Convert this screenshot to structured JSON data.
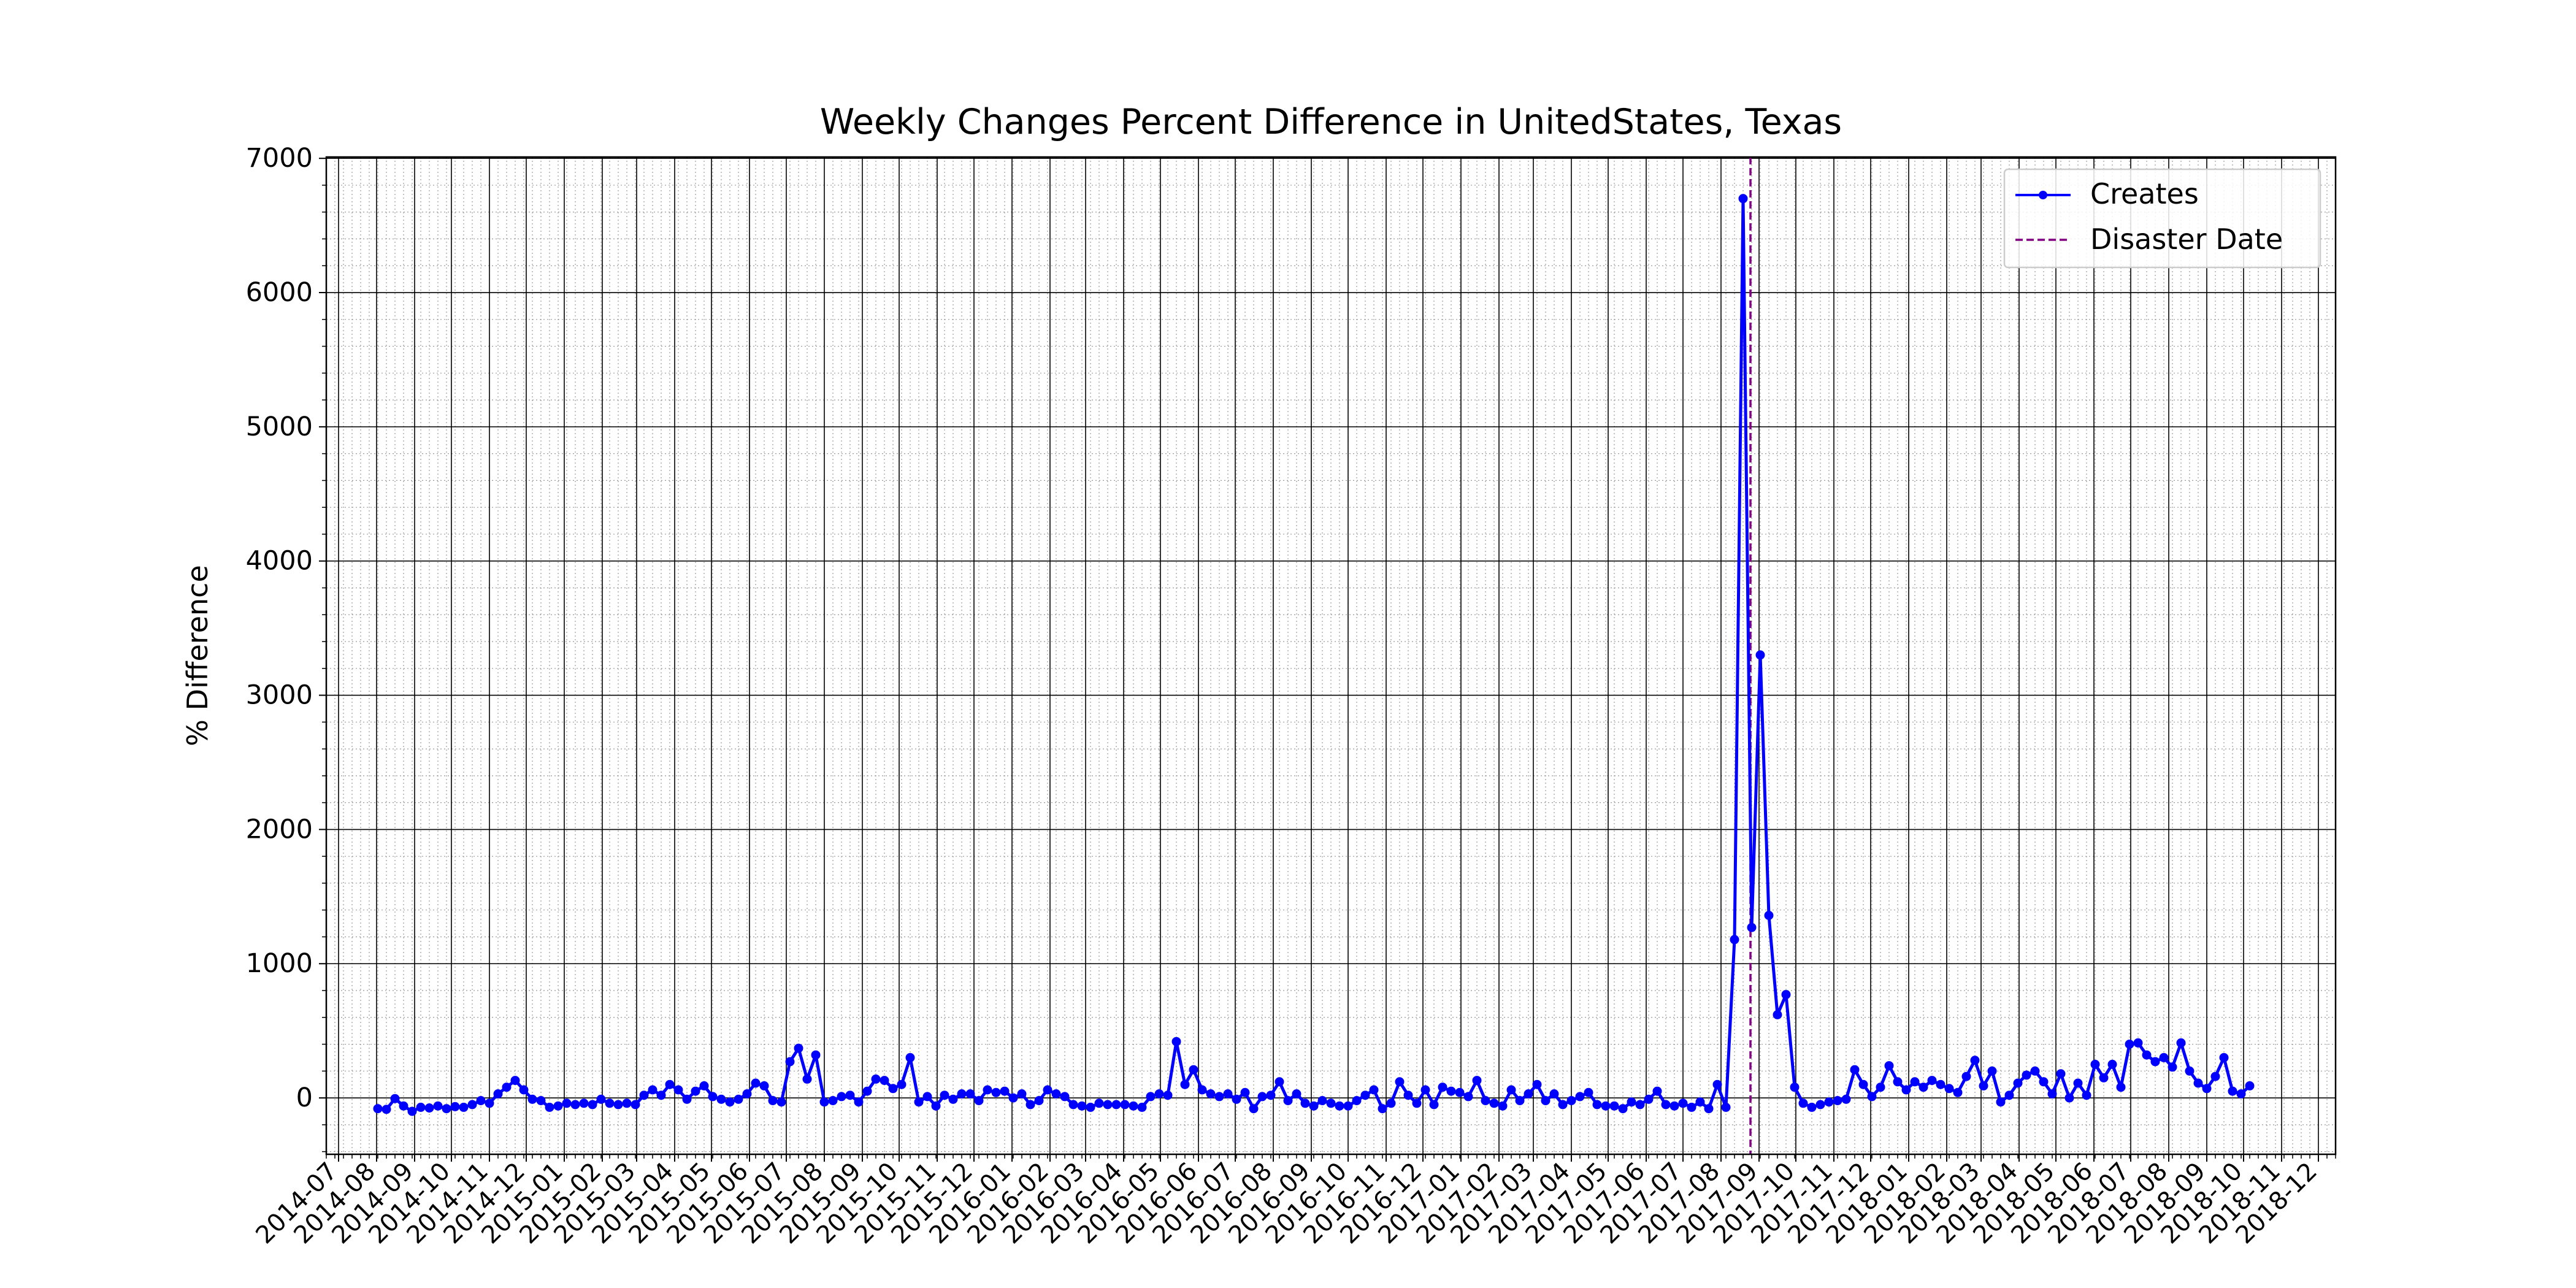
{
  "chart_data": {
    "type": "line",
    "title": "Weekly Changes Percent Difference in UnitedStates, Texas",
    "xlabel": "",
    "ylabel": "% Difference",
    "x_axis": "date",
    "xlim": [
      "2014-06-21",
      "2018-12-15"
    ],
    "ylim": [
      -420,
      7010
    ],
    "x_ticks": [
      "2014-07-01",
      "2014-08-01",
      "2014-09-01",
      "2014-10-01",
      "2014-11-01",
      "2014-12-01",
      "2015-01-01",
      "2015-02-01",
      "2015-03-01",
      "2015-04-01",
      "2015-05-01",
      "2015-06-01",
      "2015-07-01",
      "2015-08-01",
      "2015-09-01",
      "2015-10-01",
      "2015-11-01",
      "2015-12-01",
      "2016-01-01",
      "2016-02-01",
      "2016-03-01",
      "2016-04-01",
      "2016-05-01",
      "2016-06-01",
      "2016-07-01",
      "2016-08-01",
      "2016-09-01",
      "2016-10-01",
      "2016-11-01",
      "2016-12-01",
      "2017-01-01",
      "2017-02-01",
      "2017-03-01",
      "2017-04-01",
      "2017-05-01",
      "2017-06-01",
      "2017-07-01",
      "2017-08-01",
      "2017-09-01",
      "2017-10-01",
      "2017-11-01",
      "2017-12-01",
      "2018-01-01",
      "2018-02-01",
      "2018-03-01",
      "2018-04-01",
      "2018-05-01",
      "2018-06-01",
      "2018-07-01",
      "2018-08-01",
      "2018-09-01",
      "2018-10-01",
      "2018-11-01",
      "2018-12-01"
    ],
    "x_tick_labels": [
      "2014-07",
      "2014-08",
      "2014-09",
      "2014-10",
      "2014-11",
      "2014-12",
      "2015-01",
      "2015-02",
      "2015-03",
      "2015-04",
      "2015-05",
      "2015-06",
      "2015-07",
      "2015-08",
      "2015-09",
      "2015-10",
      "2015-11",
      "2015-12",
      "2016-01",
      "2016-02",
      "2016-03",
      "2016-04",
      "2016-05",
      "2016-06",
      "2016-07",
      "2016-08",
      "2016-09",
      "2016-10",
      "2016-11",
      "2016-12",
      "2017-01",
      "2017-02",
      "2017-03",
      "2017-04",
      "2017-05",
      "2017-06",
      "2017-07",
      "2017-08",
      "2017-09",
      "2017-10",
      "2017-11",
      "2017-12",
      "2018-01",
      "2018-02",
      "2018-03",
      "2018-04",
      "2018-05",
      "2018-06",
      "2018-07",
      "2018-08",
      "2018-09",
      "2018-10",
      "2018-11",
      "2018-12"
    ],
    "y_ticks": [
      0,
      1000,
      2000,
      3000,
      4000,
      5000,
      6000,
      7000
    ],
    "y_tick_labels": [
      "0",
      "1000",
      "2000",
      "3000",
      "4000",
      "5000",
      "6000",
      "7000"
    ],
    "grid": true,
    "legend_position": "top-right",
    "disaster_date": "2017-08-25",
    "series": [
      {
        "name": "Creates",
        "color": "#0000ff",
        "marker": "circle",
        "start": "2014-08-02",
        "interval_days": 7,
        "values": [
          -80,
          -85,
          -5,
          -60,
          -100,
          -70,
          -75,
          -60,
          -80,
          -65,
          -70,
          -50,
          -20,
          -40,
          30,
          80,
          130,
          60,
          -10,
          -20,
          -70,
          -60,
          -40,
          -50,
          -40,
          -50,
          -10,
          -40,
          -50,
          -40,
          -50,
          20,
          60,
          20,
          100,
          60,
          -10,
          50,
          90,
          10,
          -10,
          -30,
          -10,
          30,
          110,
          90,
          -20,
          -30,
          270,
          370,
          140,
          320,
          -30,
          -20,
          10,
          20,
          -30,
          50,
          140,
          130,
          70,
          100,
          300,
          -30,
          10,
          -60,
          20,
          -10,
          30,
          30,
          -20,
          60,
          40,
          50,
          0,
          30,
          -50,
          -20,
          60,
          30,
          10,
          -50,
          -60,
          -70,
          -40,
          -50,
          -50,
          -50,
          -60,
          -70,
          10,
          30,
          20,
          420,
          100,
          210,
          60,
          30,
          10,
          30,
          -10,
          40,
          -80,
          10,
          20,
          120,
          -20,
          30,
          -40,
          -60,
          -20,
          -40,
          -60,
          -60,
          -20,
          20,
          60,
          -80,
          -40,
          120,
          20,
          -40,
          60,
          -50,
          80,
          50,
          40,
          10,
          130,
          -20,
          -40,
          -60,
          60,
          -20,
          30,
          100,
          -20,
          30,
          -50,
          -20,
          10,
          40,
          -50,
          -60,
          -60,
          -80,
          -30,
          -50,
          -10,
          50,
          -50,
          -60,
          -40,
          -70,
          -30,
          -80,
          100,
          -70,
          1180,
          6700,
          1270,
          3300,
          1360,
          620,
          770,
          80,
          -40,
          -70,
          -50,
          -30,
          -20,
          -10,
          210,
          100,
          10,
          80,
          240,
          120,
          60,
          120,
          80,
          130,
          100,
          70,
          40,
          160,
          280,
          90,
          200,
          -30,
          20,
          110,
          170,
          200,
          120,
          30,
          180,
          0,
          110,
          20,
          250,
          150,
          250,
          80,
          400,
          410,
          320,
          270,
          300,
          230,
          410,
          200,
          110,
          70,
          160,
          300,
          50,
          30,
          90
        ]
      }
    ]
  }
}
